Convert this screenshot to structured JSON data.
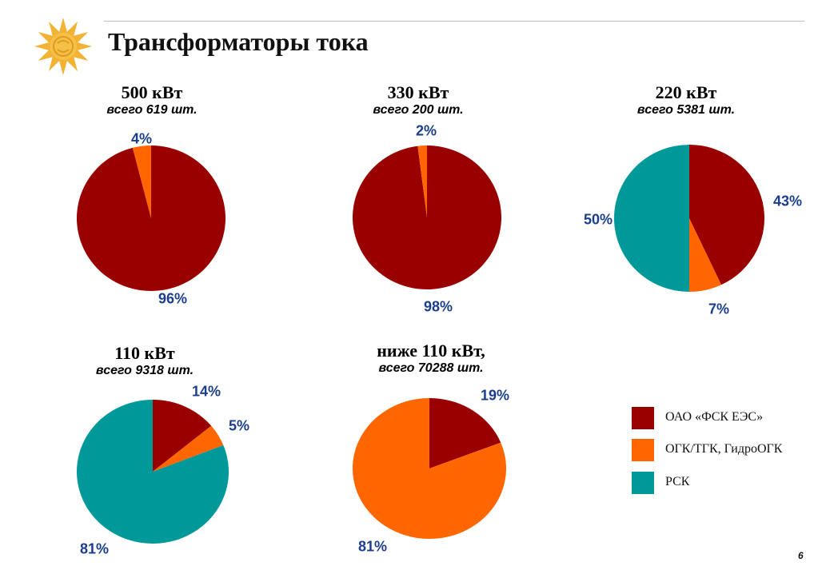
{
  "page": {
    "title": "Трансформаторы тока",
    "page_number": "6"
  },
  "colors": {
    "fsk": "#990000",
    "ogk": "#ff6600",
    "rsk": "#00999a",
    "label": "#1a3e8c"
  },
  "legend": [
    {
      "label": "ОАО «ФСК ЕЭС»",
      "color": "#990000"
    },
    {
      "label": "ОГК/ТГК, ГидроОГК",
      "color": "#ff6600"
    },
    {
      "label": "РСК",
      "color": "#00999a"
    }
  ],
  "chart_data": [
    {
      "type": "pie",
      "title": "500 кВт",
      "subtitle": "всего 619 шт.",
      "slices": [
        {
          "category": "ОАО «ФСК ЕЭС»",
          "value": 96,
          "label": "96%"
        },
        {
          "category": "ОГК/ТГК, ГидроОГК",
          "value": 4,
          "label": "4%"
        }
      ]
    },
    {
      "type": "pie",
      "title": "330 кВт",
      "subtitle": "всего 200 шт.",
      "slices": [
        {
          "category": "ОАО «ФСК ЕЭС»",
          "value": 98,
          "label": "98%"
        },
        {
          "category": "ОГК/ТГК, ГидроОГК",
          "value": 2,
          "label": "2%"
        }
      ]
    },
    {
      "type": "pie",
      "title": "220 кВт",
      "subtitle": "всего 5381 шт.",
      "slices": [
        {
          "category": "ОАО «ФСК ЕЭС»",
          "value": 43,
          "label": "43%"
        },
        {
          "category": "ОГК/ТГК, ГидроОГК",
          "value": 7,
          "label": "7%"
        },
        {
          "category": "РСК",
          "value": 50,
          "label": "50%"
        }
      ]
    },
    {
      "type": "pie",
      "title": "110 кВт",
      "subtitle": "всего 9318 шт.",
      "slices": [
        {
          "category": "ОАО «ФСК ЕЭС»",
          "value": 14,
          "label": "14%"
        },
        {
          "category": "ОГК/ТГК, ГидроОГК",
          "value": 5,
          "label": "5%"
        },
        {
          "category": "РСК",
          "value": 81,
          "label": "81%"
        }
      ]
    },
    {
      "type": "pie",
      "title": "ниже 110 кВт,",
      "subtitle": "всего 70288 шт.",
      "slices": [
        {
          "category": "ОАО «ФСК ЕЭС»",
          "value": 19,
          "label": "19%"
        },
        {
          "category": "ОГК/ТГК, ГидроОГК",
          "value": 81,
          "label": "81%"
        }
      ]
    }
  ]
}
